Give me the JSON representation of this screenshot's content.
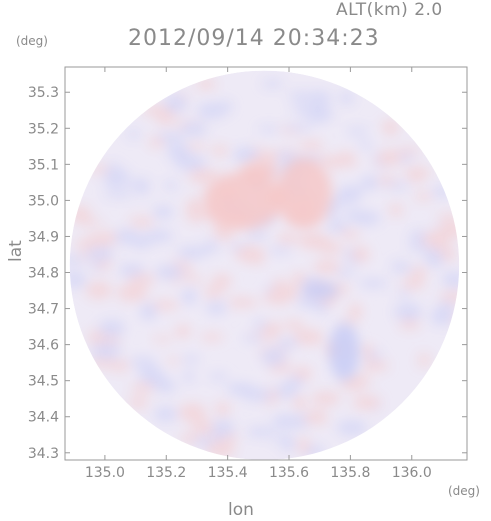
{
  "header": {
    "altitude_label": "ALT(km) 2.0",
    "timestamp": "2012/09/14 20:34:23"
  },
  "axis_units": {
    "y_unit": "(deg)",
    "x_unit": "(deg)"
  },
  "chart_data": {
    "type": "heatmap",
    "title": "2012/09/14 20:34:23",
    "xlabel": "lon",
    "ylabel": "lat",
    "xlim": [
      134.87,
      136.18
    ],
    "ylim": [
      34.28,
      35.37
    ],
    "x_ticks": [
      {
        "value": 135.0,
        "label": "135.0"
      },
      {
        "value": 135.2,
        "label": "135.2"
      },
      {
        "value": 135.4,
        "label": "135.4"
      },
      {
        "value": 135.6,
        "label": "135.6"
      },
      {
        "value": 135.8,
        "label": "135.8"
      },
      {
        "value": 136.0,
        "label": "136.0"
      }
    ],
    "y_ticks": [
      {
        "value": 34.3,
        "label": "34.3"
      },
      {
        "value": 34.4,
        "label": "34.4"
      },
      {
        "value": 34.5,
        "label": "34.5"
      },
      {
        "value": 34.6,
        "label": "34.6"
      },
      {
        "value": 34.7,
        "label": "34.7"
      },
      {
        "value": 34.8,
        "label": "34.8"
      },
      {
        "value": 34.9,
        "label": "34.9"
      },
      {
        "value": 35.0,
        "label": "35.0"
      },
      {
        "value": 35.1,
        "label": "35.1"
      },
      {
        "value": 35.2,
        "label": "35.2"
      },
      {
        "value": 35.3,
        "label": "35.3"
      }
    ],
    "grid": false,
    "radar_coverage": {
      "center_lon": 135.52,
      "center_lat": 34.82,
      "radius_deg": 0.54
    },
    "features": [
      {
        "kind": "positive",
        "lon": 135.45,
        "lat": 35.0,
        "rx": 0.13,
        "ry": 0.08
      },
      {
        "kind": "positive",
        "lon": 135.65,
        "lat": 35.02,
        "rx": 0.09,
        "ry": 0.1
      },
      {
        "kind": "positive",
        "lon": 135.5,
        "lat": 35.08,
        "rx": 0.06,
        "ry": 0.03
      },
      {
        "kind": "negative",
        "lon": 135.7,
        "lat": 34.75,
        "rx": 0.06,
        "ry": 0.025
      },
      {
        "kind": "negative",
        "lon": 135.78,
        "lat": 34.58,
        "rx": 0.05,
        "ry": 0.08
      }
    ],
    "colors": {
      "positive": "#f6c8c8",
      "negative": "#c8ccf6",
      "neutral": "#eeeaf6",
      "axis": "#9a9a9a"
    }
  }
}
